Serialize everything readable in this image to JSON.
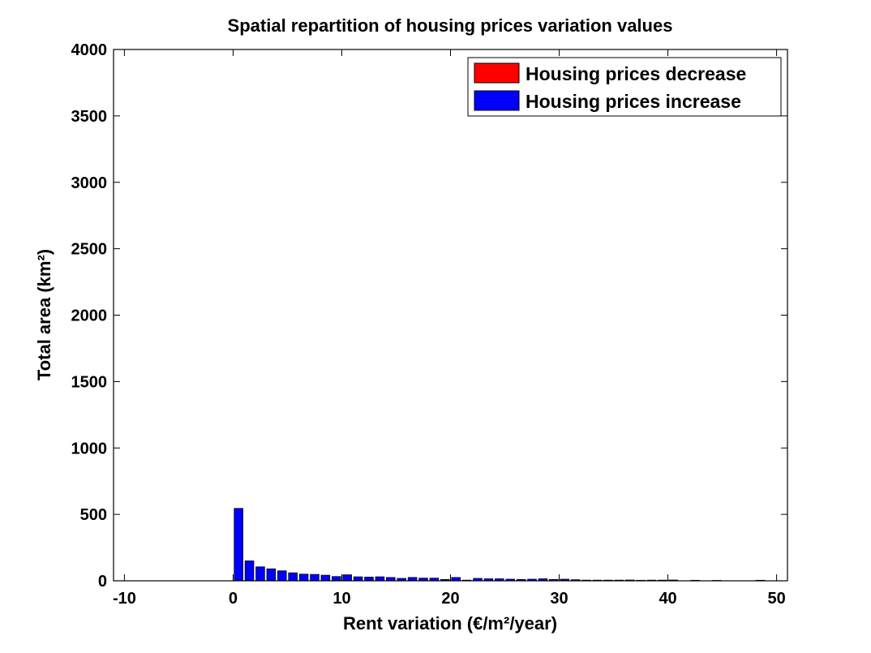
{
  "chart_data": {
    "type": "bar",
    "title": "Spatial repartition of housing prices variation values",
    "xlabel": "Rent variation (€/m²/year)",
    "ylabel": "Total area (km²)",
    "xlim": [
      -11,
      51
    ],
    "ylim": [
      0,
      4000
    ],
    "xticks": [
      -10,
      0,
      10,
      20,
      30,
      40,
      50
    ],
    "yticks": [
      0,
      500,
      1000,
      1500,
      2000,
      2500,
      3000,
      3500,
      4000
    ],
    "grid": false,
    "legend_position": "top-right",
    "bin_width": 1,
    "series": [
      {
        "name": "Housing prices decrease",
        "color": "#ff0000",
        "x": [],
        "values": []
      },
      {
        "name": "Housing prices increase",
        "color": "#0000ff",
        "x": [
          0.5,
          1.5,
          2.5,
          3.5,
          4.5,
          5.5,
          6.5,
          7.5,
          8.5,
          9.5,
          10.5,
          11.5,
          12.5,
          13.5,
          14.5,
          15.5,
          16.5,
          17.5,
          18.5,
          19.5,
          20.5,
          21.5,
          22.5,
          23.5,
          24.5,
          25.5,
          26.5,
          27.5,
          28.5,
          29.5,
          30.5,
          31.5,
          32.5,
          33.5,
          34.5,
          35.5,
          36.5,
          37.5,
          38.5,
          39.5,
          40.5,
          42.5,
          44.5,
          48.5
        ],
        "values": [
          545,
          150,
          105,
          90,
          75,
          60,
          50,
          48,
          42,
          32,
          45,
          30,
          28,
          30,
          25,
          18,
          25,
          20,
          20,
          10,
          25,
          5,
          18,
          15,
          15,
          12,
          10,
          12,
          15,
          10,
          12,
          8,
          5,
          5,
          5,
          5,
          6,
          4,
          5,
          5,
          6,
          4,
          3,
          4
        ]
      }
    ]
  }
}
